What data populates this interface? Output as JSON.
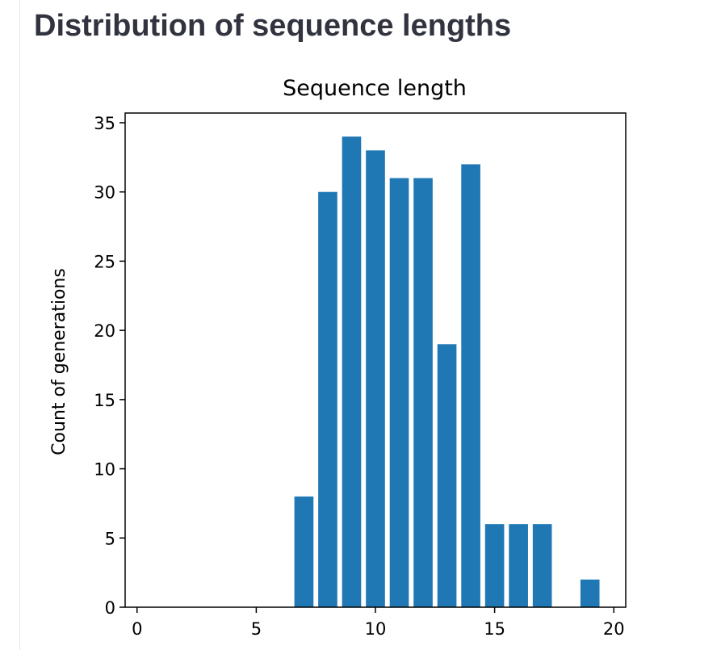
{
  "page": {
    "heading": "Distribution of sequence lengths"
  },
  "colors": {
    "bar": "#1f77b4",
    "heading_text": "#31333f",
    "axis": "#000000"
  },
  "chart_data": {
    "type": "bar",
    "title": "Sequence length",
    "xlabel": "",
    "ylabel": "Count of generations",
    "xlim": [
      -0.5,
      20.5
    ],
    "ylim": [
      0,
      35.7
    ],
    "xticks": [
      0,
      5,
      10,
      15,
      20
    ],
    "yticks": [
      0,
      5,
      10,
      15,
      20,
      25,
      30,
      35
    ],
    "bar_width": 0.8,
    "grid": false,
    "x": [
      7,
      8,
      9,
      10,
      11,
      12,
      13,
      14,
      15,
      16,
      17,
      19
    ],
    "values": [
      8,
      30,
      34,
      33,
      31,
      31,
      19,
      32,
      6,
      6,
      6,
      2
    ]
  }
}
